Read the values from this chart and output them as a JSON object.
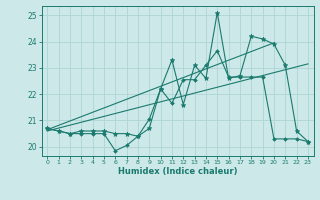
{
  "title": "",
  "xlabel": "Humidex (Indice chaleur)",
  "xlim": [
    -0.5,
    23.5
  ],
  "ylim": [
    19.65,
    25.35
  ],
  "yticks": [
    20,
    21,
    22,
    23,
    24,
    25
  ],
  "xticks": [
    0,
    1,
    2,
    3,
    4,
    5,
    6,
    7,
    8,
    9,
    10,
    11,
    12,
    13,
    14,
    15,
    16,
    17,
    18,
    19,
    20,
    21,
    22,
    23
  ],
  "bg_color": "#cce8e8",
  "line_color": "#1a7a6e",
  "grid_color": "#aed4d4",
  "series1_x": [
    0,
    1,
    2,
    3,
    4,
    5,
    6,
    7,
    8,
    9,
    10,
    11,
    12,
    13,
    14,
    15,
    16,
    17,
    18,
    19,
    20,
    21,
    22,
    23
  ],
  "series1_y": [
    20.7,
    20.6,
    20.5,
    20.6,
    20.6,
    20.6,
    20.5,
    20.5,
    20.4,
    20.7,
    22.2,
    23.3,
    21.6,
    23.1,
    22.6,
    25.1,
    22.6,
    22.7,
    24.2,
    24.1,
    23.9,
    23.1,
    20.6,
    20.2
  ],
  "series2_x": [
    0,
    1,
    2,
    3,
    4,
    5,
    6,
    7,
    8,
    9,
    10,
    11,
    12,
    13,
    14,
    15,
    16,
    17,
    18,
    19,
    20,
    21,
    22,
    23
  ],
  "series2_y": [
    20.7,
    20.6,
    20.5,
    20.5,
    20.5,
    20.5,
    19.85,
    20.05,
    20.4,
    21.05,
    22.2,
    21.65,
    22.55,
    22.55,
    23.1,
    23.65,
    22.65,
    22.65,
    22.65,
    22.65,
    20.3,
    20.3,
    20.3,
    20.2
  ],
  "trend1_x": [
    0,
    20
  ],
  "trend1_y": [
    20.65,
    23.95
  ],
  "trend2_x": [
    0,
    23
  ],
  "trend2_y": [
    20.6,
    23.15
  ]
}
